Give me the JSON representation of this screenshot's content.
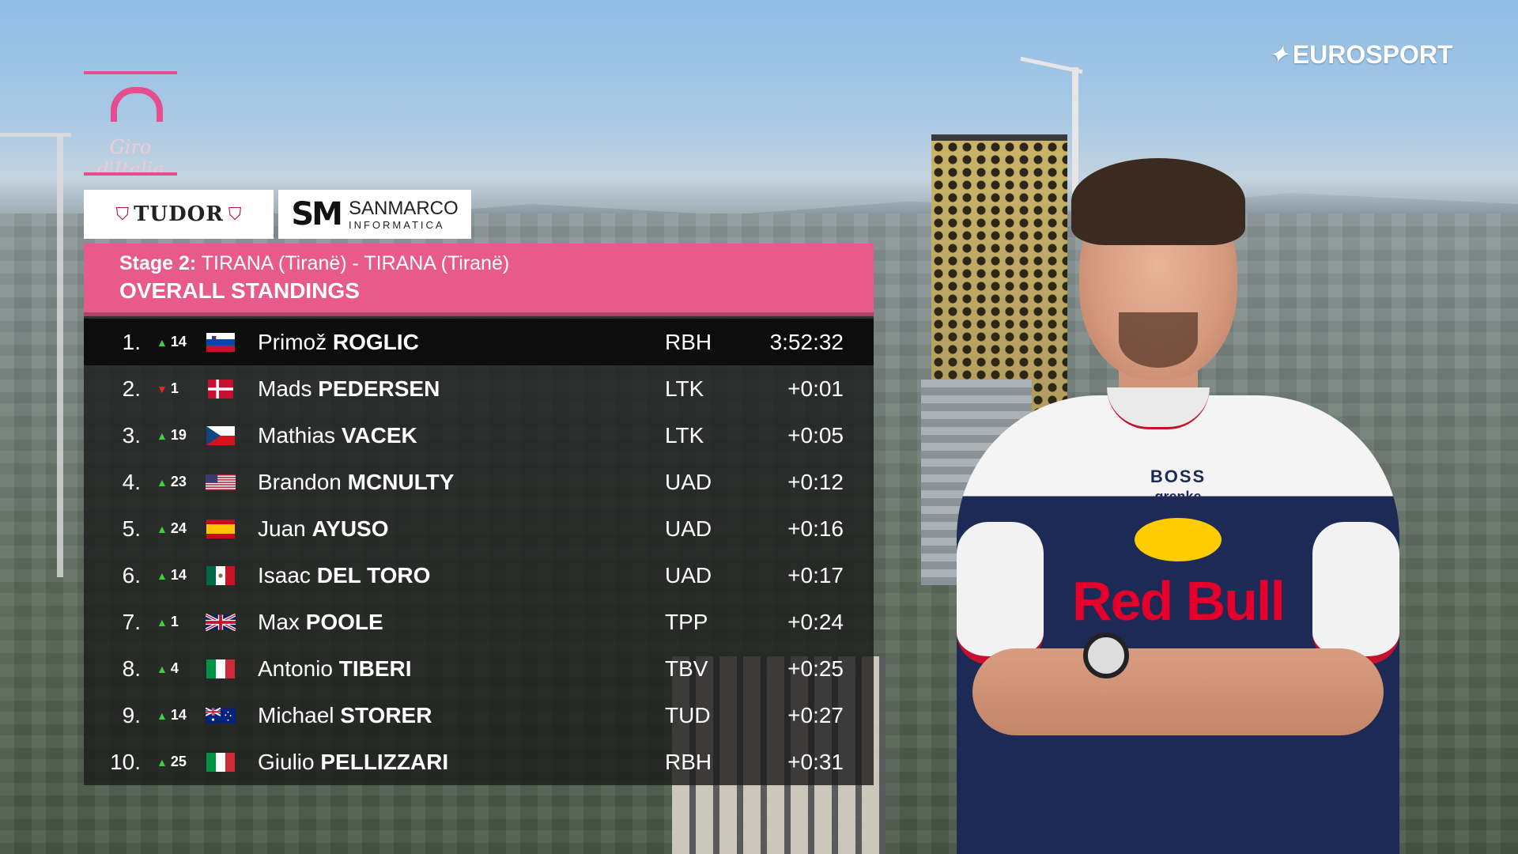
{
  "broadcaster": {
    "logo_text": "EUROSPORT"
  },
  "race": {
    "logo_text": "Giro d'Italia"
  },
  "sponsors": {
    "tudor": "TUDOR",
    "sanmarco_top": "SANMARCO",
    "sanmarco_bottom": "INFORMATICA",
    "sanmarco_mark": "SM"
  },
  "header": {
    "stage_label": "Stage 2:",
    "stage_route": "TIRANA (Tiranë) - TIRANA (Tiranë)",
    "title": "OVERALL STANDINGS"
  },
  "colors": {
    "accent_pink": "#e85a8a",
    "move_up": "#3dd13d",
    "move_down": "#e02828"
  },
  "standings": [
    {
      "pos": "1.",
      "dir": "up",
      "move": "14",
      "flag": "slovenia-flag",
      "first": "Primož",
      "last": "ROGLIC",
      "team": "RBH",
      "time": "3:52:32"
    },
    {
      "pos": "2.",
      "dir": "down",
      "move": "1",
      "flag": "denmark-flag",
      "first": "Mads",
      "last": "PEDERSEN",
      "team": "LTK",
      "time": "+0:01"
    },
    {
      "pos": "3.",
      "dir": "up",
      "move": "19",
      "flag": "czech-flag",
      "first": "Mathias",
      "last": "VACEK",
      "team": "LTK",
      "time": "+0:05"
    },
    {
      "pos": "4.",
      "dir": "up",
      "move": "23",
      "flag": "usa-flag",
      "first": "Brandon",
      "last": "MCNULTY",
      "team": "UAD",
      "time": "+0:12"
    },
    {
      "pos": "5.",
      "dir": "up",
      "move": "24",
      "flag": "spain-flag",
      "first": "Juan",
      "last": "AYUSO",
      "team": "UAD",
      "time": "+0:16"
    },
    {
      "pos": "6.",
      "dir": "up",
      "move": "14",
      "flag": "mexico-flag",
      "first": "Isaac",
      "last": "DEL TORO",
      "team": "UAD",
      "time": "+0:17"
    },
    {
      "pos": "7.",
      "dir": "up",
      "move": "1",
      "flag": "uk-flag",
      "first": "Max",
      "last": "POOLE",
      "team": "TPP",
      "time": "+0:24"
    },
    {
      "pos": "8.",
      "dir": "up",
      "move": "4",
      "flag": "italy-flag",
      "first": "Antonio",
      "last": "TIBERI",
      "team": "TBV",
      "time": "+0:25"
    },
    {
      "pos": "9.",
      "dir": "up",
      "move": "14",
      "flag": "australia-flag",
      "first": "Michael",
      "last": "STORER",
      "team": "TUD",
      "time": "+0:27"
    },
    {
      "pos": "10.",
      "dir": "up",
      "move": "25",
      "flag": "italy-flag",
      "first": "Giulio",
      "last": "PELLIZZARI",
      "team": "RBH",
      "time": "+0:31"
    }
  ],
  "rider_jersey": {
    "brand_top": "BOSS",
    "brand_sub": "grenke",
    "brand_main": "Red Bull"
  }
}
